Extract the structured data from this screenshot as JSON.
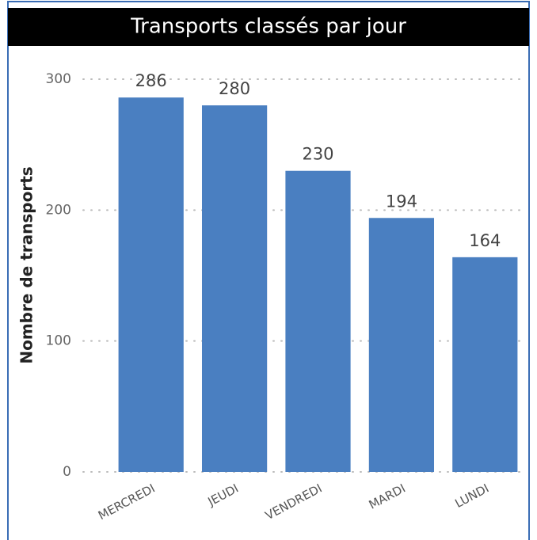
{
  "chart_data": {
    "type": "bar",
    "title": "Transports classés par jour",
    "y_label": "Nombre de transports",
    "categories": [
      "MERCREDI",
      "JEUDI",
      "VENDREDI",
      "MARDI",
      "LUNDI"
    ],
    "values": [
      286,
      280,
      230,
      194,
      164
    ],
    "color": "#4a7fc1",
    "ylim": [
      0,
      300
    ],
    "yticks": [
      0,
      100,
      200,
      300
    ],
    "grid": true
  }
}
